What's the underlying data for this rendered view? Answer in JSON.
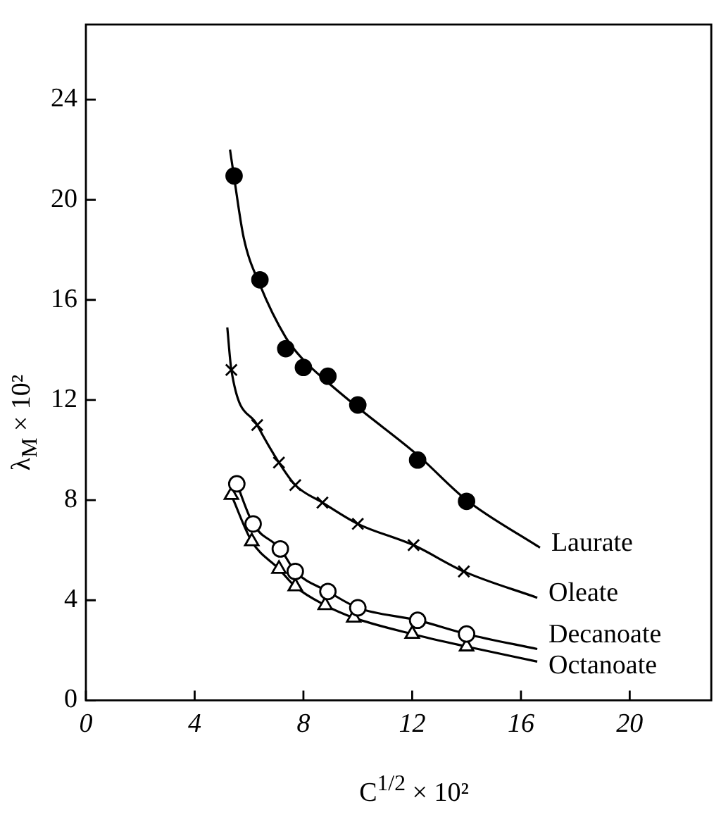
{
  "chart_data": {
    "type": "line",
    "xlabel": "C$^{1/2}$ × 10²",
    "ylabel": "λ$_{M}$ × 10²",
    "xlim": [
      0,
      23
    ],
    "ylim": [
      0,
      27
    ],
    "xticks": [
      0,
      4,
      8,
      12,
      16,
      20
    ],
    "yticks": [
      0,
      4,
      8,
      12,
      16,
      20,
      24
    ],
    "grid": false,
    "legend": false,
    "series": [
      {
        "name": "Laurate",
        "color": "#000000",
        "marker": "none",
        "x": [
          5.3,
          5.45,
          5.8,
          6.4,
          7.35,
          8.0,
          8.9,
          10.0,
          12.2,
          14.0,
          16.7
        ],
        "values": [
          22.0,
          20.9,
          18.5,
          16.6,
          14.5,
          13.6,
          12.7,
          11.7,
          9.8,
          8.0,
          6.1
        ]
      },
      {
        "type": "scatter",
        "color": "#000000",
        "marker": "circle",
        "x": [
          5.45,
          6.4,
          7.35,
          8.0,
          8.9,
          10.0,
          12.2,
          14.0
        ],
        "values": [
          20.95,
          16.8,
          14.05,
          13.3,
          12.95,
          11.8,
          9.6,
          7.95
        ]
      },
      {
        "name": "Oleate",
        "color": "#000000",
        "marker": "none",
        "x": [
          5.2,
          5.35,
          6.3,
          7.1,
          7.7,
          8.7,
          10.0,
          12.05,
          13.9,
          16.6
        ],
        "values": [
          14.9,
          13.2,
          11.0,
          9.5,
          8.6,
          7.9,
          7.05,
          6.2,
          5.15,
          4.1
        ]
      },
      {
        "type": "scatter",
        "color": "#000000",
        "marker": "cross",
        "x": [
          5.35,
          6.3,
          7.1,
          7.7,
          8.7,
          10.0,
          12.05,
          13.9
        ],
        "values": [
          13.2,
          11.0,
          9.5,
          8.6,
          7.9,
          7.05,
          6.2,
          5.15
        ]
      },
      {
        "name": "Decanoate",
        "color": "#000000",
        "marker": "none",
        "x": [
          5.55,
          6.15,
          7.15,
          7.7,
          8.9,
          10.0,
          12.2,
          14.0,
          16.6
        ],
        "values": [
          8.65,
          7.05,
          6.05,
          5.15,
          4.35,
          3.7,
          3.2,
          2.65,
          2.05
        ]
      },
      {
        "type": "scatter",
        "color": "#ffffff",
        "marker": "circle",
        "x": [
          5.55,
          6.15,
          7.15,
          7.7,
          8.9,
          10.0,
          12.2,
          14.0
        ],
        "values": [
          8.65,
          7.05,
          6.05,
          5.15,
          4.35,
          3.7,
          3.2,
          2.65
        ]
      },
      {
        "name": "Octanoate",
        "color": "#000000",
        "marker": "none",
        "x": [
          5.35,
          6.1,
          7.1,
          7.7,
          8.8,
          9.85,
          12.0,
          14.0,
          16.6
        ],
        "values": [
          8.2,
          6.35,
          5.25,
          4.55,
          3.8,
          3.3,
          2.65,
          2.15,
          1.55
        ]
      },
      {
        "type": "scatter",
        "color": "#ffffff",
        "marker": "triangle",
        "x": [
          5.35,
          6.1,
          7.1,
          7.7,
          8.8,
          9.85,
          12.0,
          14.0
        ],
        "values": [
          8.2,
          6.35,
          5.25,
          4.55,
          3.8,
          3.3,
          2.65,
          2.15
        ]
      }
    ]
  }
}
